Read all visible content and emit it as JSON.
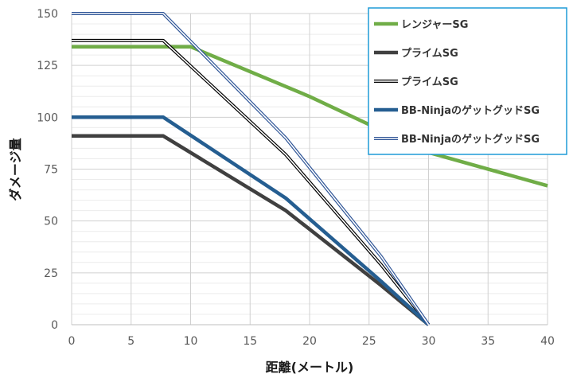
{
  "chart_data": {
    "type": "line",
    "title": "",
    "xlabel": "距離(メートル)",
    "ylabel": "ダメージ量",
    "xlim": [
      0,
      40
    ],
    "ylim": [
      0,
      150
    ],
    "xticks": [
      0,
      5,
      10,
      15,
      20,
      25,
      30,
      35,
      40
    ],
    "yticks": [
      0,
      25,
      50,
      75,
      100,
      125,
      150
    ],
    "grid": true,
    "legend_position": "top-right",
    "series": [
      {
        "name": "レンジャーSG",
        "color": "#70ad47",
        "style": "solid",
        "points": [
          [
            0,
            134
          ],
          [
            10,
            134
          ],
          [
            20,
            110
          ],
          [
            30,
            83
          ],
          [
            40,
            67
          ]
        ]
      },
      {
        "name": "プライムSG",
        "color": "#404040",
        "style": "solid",
        "points": [
          [
            0,
            91
          ],
          [
            7.7,
            91
          ],
          [
            18,
            55
          ],
          [
            26,
            19
          ],
          [
            30,
            0
          ]
        ]
      },
      {
        "name": "プライムSG",
        "color": "#000000",
        "style": "double",
        "points": [
          [
            0,
            137
          ],
          [
            7.7,
            137
          ],
          [
            18,
            82
          ],
          [
            26,
            29
          ],
          [
            30,
            0
          ]
        ]
      },
      {
        "name": "BB-NinjaのゲットグッドSG",
        "color": "#255e91",
        "style": "solid",
        "points": [
          [
            0,
            100
          ],
          [
            7.7,
            100
          ],
          [
            18,
            61
          ],
          [
            26,
            21
          ],
          [
            30,
            0
          ]
        ]
      },
      {
        "name": "BB-NinjaのゲットグッドSG",
        "color": "#2f5597",
        "style": "double",
        "points": [
          [
            0,
            150
          ],
          [
            7.7,
            150
          ],
          [
            18,
            90
          ],
          [
            26,
            33
          ],
          [
            30,
            0
          ]
        ]
      }
    ]
  }
}
